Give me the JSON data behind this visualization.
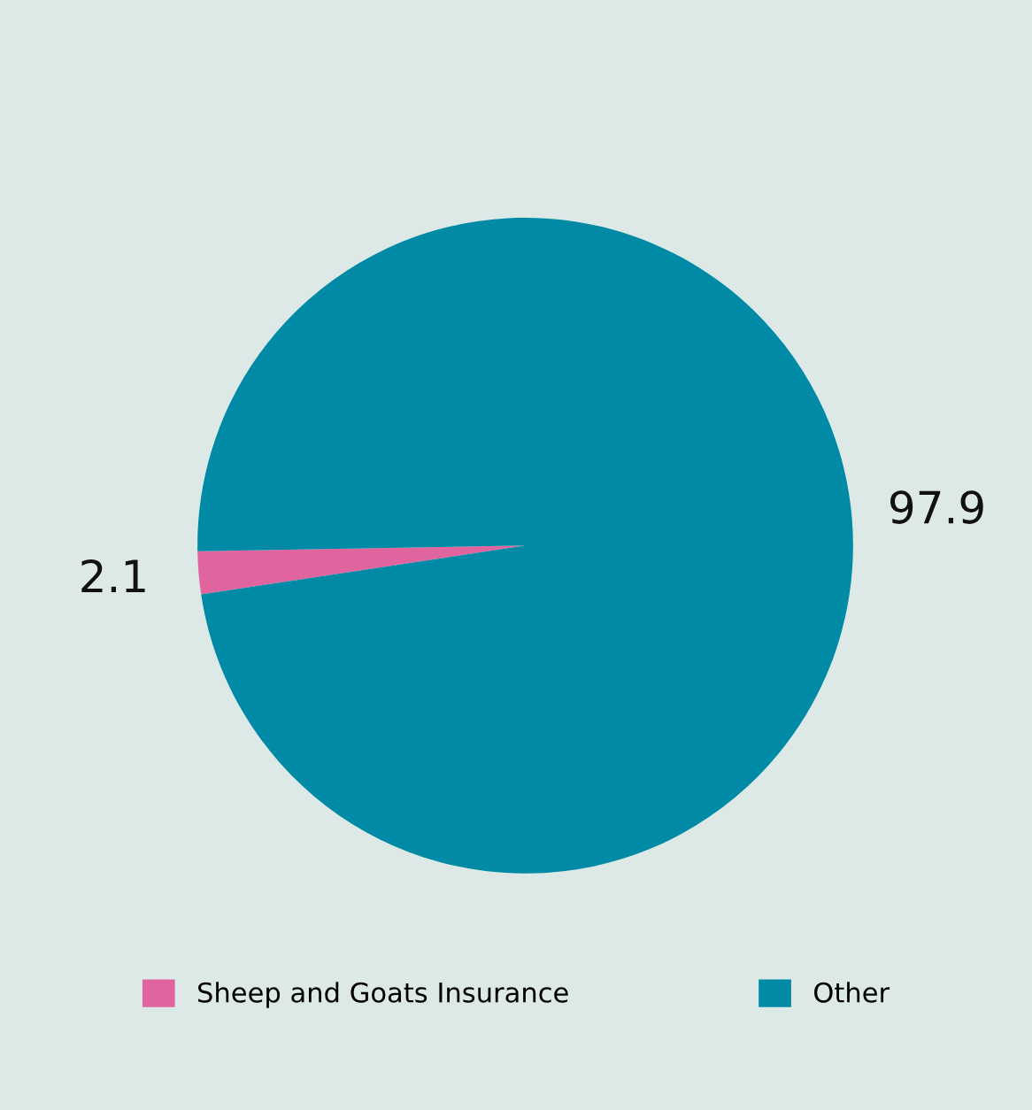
{
  "chart_data": {
    "type": "pie",
    "categories": [
      "Sheep and Goats Insurance",
      "Other"
    ],
    "values": [
      2.1,
      97.9
    ],
    "colors": [
      "#e0649e",
      "#008aa6"
    ],
    "data_labels": true,
    "legend": "bottom"
  }
}
